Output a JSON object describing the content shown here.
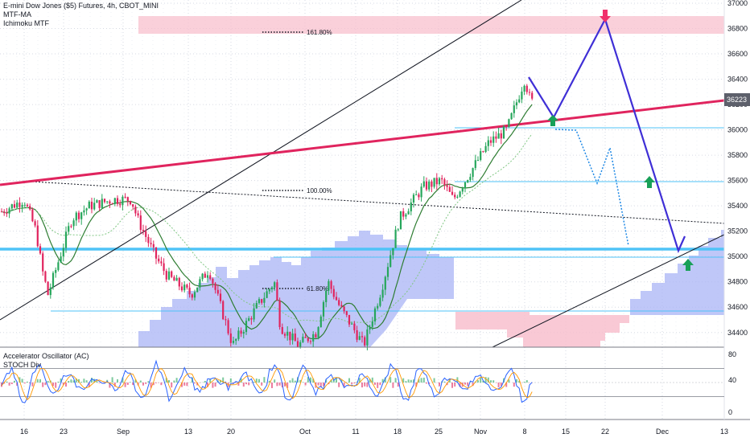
{
  "header": {
    "symbol_title": "E-mini Dow Jones ($5) Futures, 4h, CBOT_MINI",
    "indicator_1": "MTF-MA",
    "indicator_2": "Ichimoku MTF"
  },
  "oscillator_pane": {
    "indicator_1": "Accelerator Oscillator (AC)",
    "indicator_2": "STOCH Div",
    "scale_ticks": [
      "80",
      "40",
      "0"
    ]
  },
  "fib_labels": [
    "161.80%",
    "100.00%",
    "61.80%"
  ],
  "price_tag": "36223",
  "colors": {
    "trendline_red": "#e0245e",
    "projection_blue": "#3f2fd6",
    "level_blue": "#4fc3f7",
    "cloud_blue": "#a9b4f6",
    "cloud_pink": "#f8bccb",
    "arrow_green": "#18a058",
    "arrow_pink": "#f0306c",
    "candle_up": "#26a65b",
    "candle_down": "#e0245e"
  },
  "chart_data": {
    "type": "candlestick",
    "timeframe": "4h",
    "x_tick_labels": [
      "16",
      "23",
      "Sep",
      "13",
      "20",
      "Oct",
      "11",
      "18",
      "25",
      "Nov",
      "8",
      "15",
      "22",
      "Dec",
      "13"
    ],
    "y_tick_labels": [
      "37000",
      "36800",
      "36600",
      "36400",
      "36200",
      "36000",
      "35800",
      "35600",
      "35400",
      "35200",
      "35000",
      "34800",
      "34600",
      "34400"
    ],
    "ylim": [
      34300,
      37000
    ],
    "last_price": 36223,
    "close_path": [
      [
        "Aug 12",
        35350
      ],
      [
        "Aug 16",
        35450
      ],
      [
        "Aug 18",
        35200
      ],
      [
        "Aug 19",
        34900
      ],
      [
        "Aug 20",
        34700
      ],
      [
        "Aug 24",
        35300
      ],
      [
        "Aug 27",
        35400
      ],
      [
        "Aug 31",
        35450
      ],
      [
        "Sep 3",
        35450
      ],
      [
        "Sep 4",
        35300
      ],
      [
        "Sep 7",
        35000
      ],
      [
        "Sep 9",
        34850
      ],
      [
        "Sep 13",
        34700
      ],
      [
        "Sep 16",
        34900
      ],
      [
        "Sep 20",
        34300
      ],
      [
        "Sep 24",
        34600
      ],
      [
        "Sep 27",
        34800
      ],
      [
        "Sep 28",
        34450
      ],
      [
        "Oct 1",
        34300
      ],
      [
        "Oct 4",
        34400
      ],
      [
        "Oct 6",
        34800
      ],
      [
        "Oct 8",
        34600
      ],
      [
        "Oct 12",
        34300
      ],
      [
        "Oct 15",
        34750
      ],
      [
        "Oct 18",
        35300
      ],
      [
        "Oct 22",
        35550
      ],
      [
        "Oct 25",
        35600
      ],
      [
        "Oct 27",
        35450
      ],
      [
        "Nov 2",
        35900
      ],
      [
        "Nov 5",
        36000
      ],
      [
        "Nov 8",
        36400
      ],
      [
        "Nov 9",
        36223
      ]
    ],
    "horizontal_levels": [
      36000,
      35550,
      35000,
      34960,
      34500
    ],
    "fib_levels": [
      {
        "label": "161.80%",
        "price": 36800
      },
      {
        "label": "100.00%",
        "price": 35470
      },
      {
        "label": "61.80%",
        "price": 34830
      }
    ],
    "projection_path": [
      [
        "Nov 9",
        36400
      ],
      [
        "Nov 13",
        36100
      ],
      [
        "Nov 22",
        36860
      ],
      [
        "Dec 2",
        35000
      ],
      [
        "Dec 4",
        35120
      ]
    ],
    "alternate_path": [
      [
        "Nov 13",
        36000
      ],
      [
        "Nov 16",
        35980
      ],
      [
        "Nov 19",
        35580
      ],
      [
        "Nov 22",
        35810
      ],
      [
        "Nov 27",
        35050
      ]
    ],
    "markers": [
      {
        "type": "arrow-down",
        "date": "Nov 22",
        "price": 36940,
        "color": "pink"
      },
      {
        "type": "arrow-up",
        "date": "Nov 13",
        "price": 36000,
        "color": "green"
      },
      {
        "type": "arrow-up",
        "date": "Nov 27",
        "price": 35550,
        "color": "green"
      },
      {
        "type": "arrow-up",
        "date": "Dec 3",
        "price": 34880,
        "color": "green"
      }
    ]
  }
}
